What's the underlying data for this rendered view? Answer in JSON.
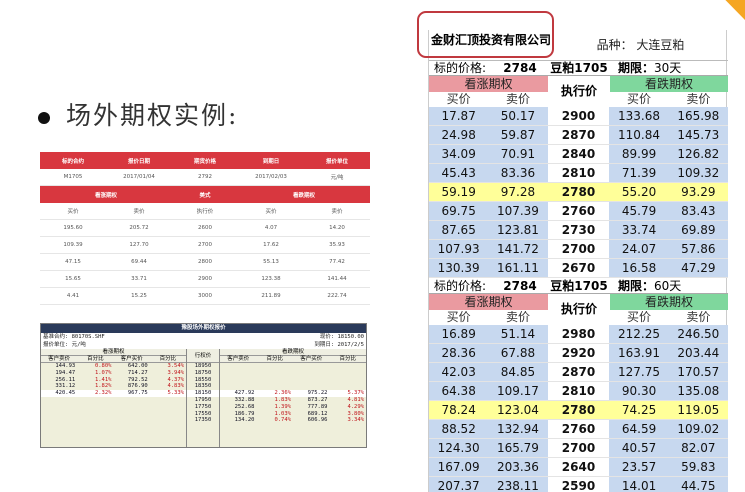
{
  "slide": {
    "title": "场外期权实例:"
  },
  "table1": {
    "header1": [
      "标的合约",
      "报价日期",
      "期货价格",
      "到期日",
      "报价单位"
    ],
    "row1": [
      "M1705",
      "2017/01/04",
      "2792",
      "2017/02/03",
      "元/吨"
    ],
    "header2": [
      "看涨期权",
      "美式",
      "看跌期权"
    ],
    "subhead": [
      "买价",
      "卖价",
      "执行价",
      "买价",
      "卖价"
    ],
    "rows": [
      [
        "195.60",
        "205.72",
        "2600",
        "4.07",
        "14.20"
      ],
      [
        "109.39",
        "127.70",
        "2700",
        "17.62",
        "35.93"
      ],
      [
        "47.15",
        "69.44",
        "2800",
        "55.13",
        "77.42"
      ],
      [
        "15.65",
        "33.71",
        "2900",
        "123.38",
        "141.44"
      ],
      [
        "4.41",
        "15.25",
        "3000",
        "211.89",
        "222.74"
      ]
    ]
  },
  "table2": {
    "title": "豫股场外期权报价",
    "meta_left1": "基准合约:",
    "meta_left1_val": "80170S.SHF",
    "meta_right1": "现价:",
    "meta_right1_val": "18150.00",
    "meta_left2": "报价单位: 元/吨",
    "meta_right2": "到期日:",
    "meta_right2_val": "2017/2/5",
    "call_head": "看涨期权",
    "put_head": "看跌期权",
    "exec_head": "行权价",
    "sub": [
      "客户卖价",
      "百分比",
      "客户买价",
      "百分比"
    ],
    "call_rows": [
      [
        "144.93",
        "0.80%",
        "642.00",
        "3.54%"
      ],
      [
        "194.47",
        "1.07%",
        "714.27",
        "3.94%"
      ],
      [
        "256.11",
        "1.41%",
        "792.52",
        "4.37%"
      ],
      [
        "331.12",
        "1.82%",
        "876.90",
        "4.83%"
      ],
      [
        "420.45",
        "2.32%",
        "967.75",
        "5.33%"
      ]
    ],
    "strikes": [
      "18950",
      "18750",
      "18550",
      "18350",
      "18150",
      "17950",
      "17750",
      "17550",
      "17350"
    ],
    "put_rows": [
      [
        "427.92",
        "2.36%",
        "975.22",
        "5.37%"
      ],
      [
        "332.88",
        "1.83%",
        "873.27",
        "4.81%"
      ],
      [
        "252.68",
        "1.39%",
        "777.89",
        "4.29%"
      ],
      [
        "186.79",
        "1.03%",
        "689.12",
        "3.80%"
      ],
      [
        "134.20",
        "0.74%",
        "606.96",
        "3.34%"
      ]
    ]
  },
  "panel": {
    "company": "金财汇顶投资有限公司",
    "product": "品种：  大连豆粕",
    "call_label": "看涨期权",
    "put_label": "看跌期权",
    "exec_label": "执行价",
    "buy": "买价",
    "sell": "卖价",
    "block1": {
      "price_label": "标的价格:",
      "price": "2784",
      "contract": "豆粕1705",
      "term_label": "期限：",
      "term": "30天",
      "rows": [
        [
          "17.87",
          "50.17",
          "2900",
          "133.68",
          "165.98"
        ],
        [
          "24.98",
          "59.87",
          "2870",
          "110.84",
          "145.73"
        ],
        [
          "34.09",
          "70.91",
          "2840",
          "89.99",
          "126.82"
        ],
        [
          "45.43",
          "83.36",
          "2810",
          "71.39",
          "109.32"
        ],
        [
          "59.19",
          "97.28",
          "2780",
          "55.20",
          "93.29"
        ],
        [
          "69.75",
          "107.39",
          "2760",
          "45.79",
          "83.43"
        ],
        [
          "87.65",
          "123.81",
          "2730",
          "33.74",
          "69.89"
        ],
        [
          "107.93",
          "141.72",
          "2700",
          "24.07",
          "57.86"
        ],
        [
          "130.39",
          "161.11",
          "2670",
          "16.58",
          "47.29"
        ]
      ],
      "highlight": 4
    },
    "block2": {
      "price_label": "标的价格:",
      "price": "2784",
      "contract": "豆粕1705",
      "term_label": "期限：",
      "term": "60天",
      "rows": [
        [
          "16.89",
          "51.14",
          "2980",
          "212.25",
          "246.50"
        ],
        [
          "28.36",
          "67.88",
          "2920",
          "163.91",
          "203.44"
        ],
        [
          "42.03",
          "84.85",
          "2870",
          "127.75",
          "170.57"
        ],
        [
          "64.38",
          "109.17",
          "2810",
          "90.30",
          "135.08"
        ],
        [
          "78.24",
          "123.04",
          "2780",
          "74.25",
          "119.05"
        ],
        [
          "88.52",
          "132.94",
          "2760",
          "64.59",
          "109.02"
        ],
        [
          "124.30",
          "165.79",
          "2700",
          "40.57",
          "82.07"
        ],
        [
          "167.09",
          "203.36",
          "2640",
          "23.57",
          "59.83"
        ],
        [
          "207.37",
          "238.11",
          "2590",
          "14.01",
          "44.75"
        ]
      ],
      "highlight": 4
    }
  }
}
